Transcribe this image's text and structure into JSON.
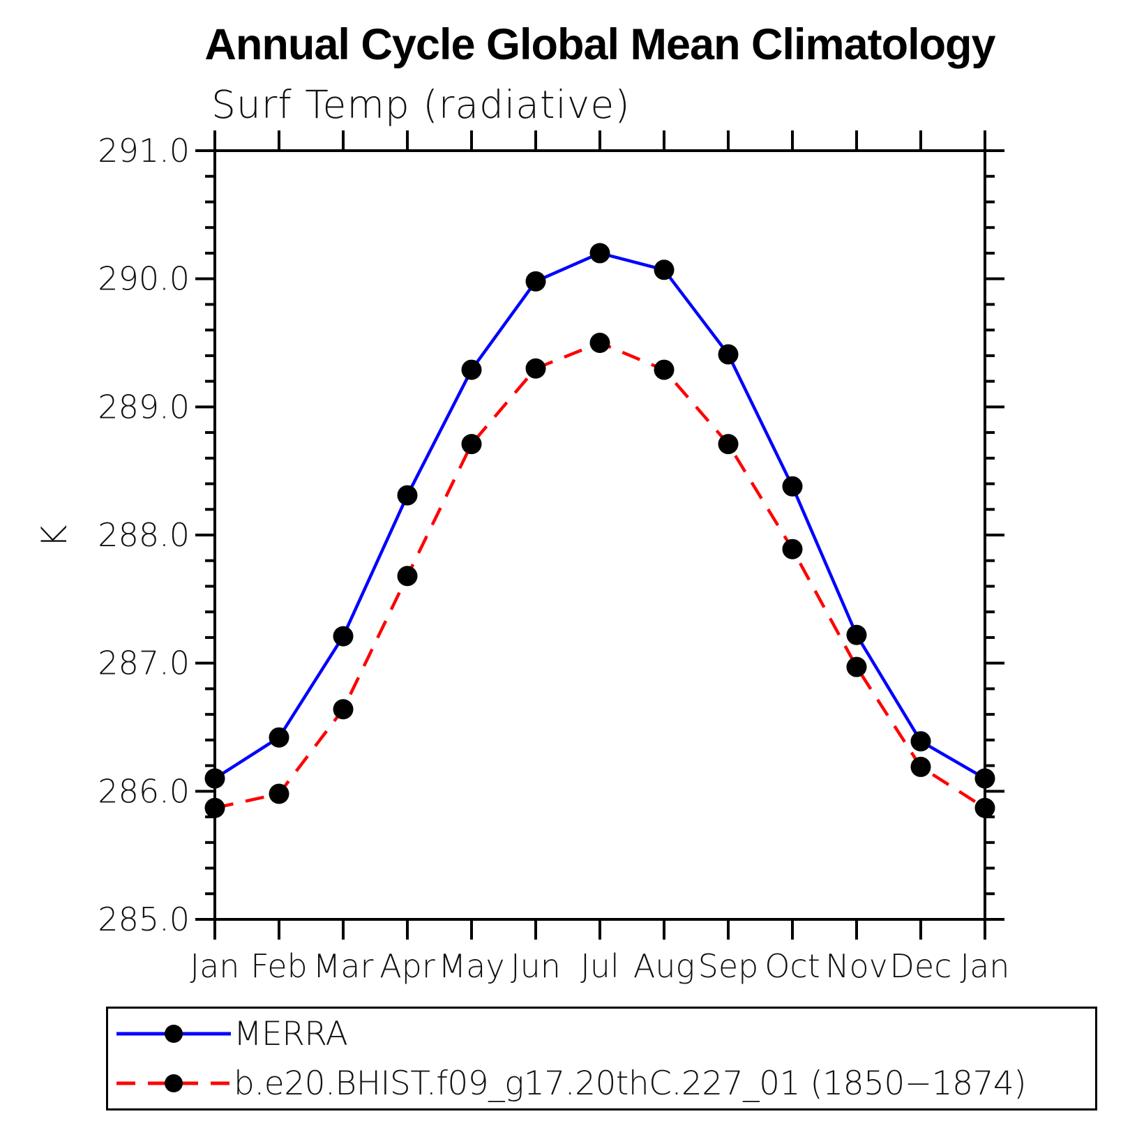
{
  "title": "Annual Cycle Global Mean Climatology",
  "subtitle": "Surf Temp (radiative)",
  "ylabel": "K",
  "chart_data": {
    "type": "line",
    "title": "Annual Cycle Global Mean Climatology",
    "subtitle": "Surf Temp (radiative)",
    "ylabel": "K",
    "x_categories": [
      "Jan",
      "Feb",
      "Mar",
      "Apr",
      "May",
      "Jun",
      "Jul",
      "Aug",
      "Sep",
      "Oct",
      "Nov",
      "Dec",
      "Jan"
    ],
    "ylim": [
      285.0,
      291.0
    ],
    "ytick_major_labels": [
      "285.0",
      "286.0",
      "287.0",
      "288.0",
      "289.0",
      "290.0",
      "291.0"
    ],
    "ytick_major_values": [
      285.0,
      286.0,
      287.0,
      288.0,
      289.0,
      290.0,
      291.0
    ],
    "ytick_minor_step": 0.2,
    "grid": false,
    "legend_position": "bottom",
    "series": [
      {
        "name": "MERRA",
        "color": "#0000ff",
        "style": "solid",
        "marker": "circle",
        "marker_color": "#000000",
        "values": [
          286.1,
          286.42,
          287.21,
          288.31,
          289.29,
          289.98,
          290.2,
          290.07,
          289.41,
          288.38,
          287.22,
          286.39,
          286.1
        ]
      },
      {
        "name": "b.e20.BHIST.f09_g17.20thC.227_01 (1850−1874)",
        "color": "#ff0000",
        "style": "dashed",
        "marker": "circle",
        "marker_color": "#000000",
        "values": [
          285.87,
          285.98,
          286.64,
          287.68,
          288.71,
          289.3,
          289.5,
          289.29,
          288.71,
          287.89,
          286.97,
          286.19,
          285.87
        ]
      }
    ]
  },
  "colors": {
    "axis": "#000000",
    "background": "#ffffff",
    "text": "#111111"
  }
}
